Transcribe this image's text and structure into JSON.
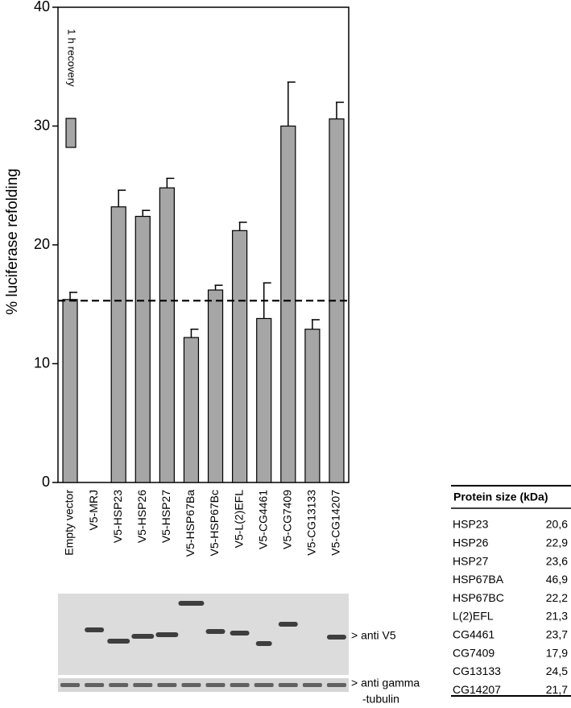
{
  "chart_data": {
    "type": "bar",
    "ylabel": "% luciferase refolding",
    "categories": [
      "Empty vector",
      "V5-MRJ",
      "V5-HSP23",
      "V5-HSP26",
      "V5-HSP27",
      "V5-HSP67Ba",
      "V5-HSP67Bc",
      "V5-L(2)EFL",
      "V5-CG4461",
      "V5-CG7409",
      "V5-CG13133",
      "V5-CG14207"
    ],
    "series": [
      {
        "name": "1 h recovery",
        "color": "#a6a6a6",
        "values": [
          15.4,
          null,
          23.2,
          22.4,
          24.8,
          12.2,
          16.2,
          21.2,
          13.8,
          30.0,
          12.9,
          30.6
        ],
        "errors": [
          0.6,
          null,
          1.4,
          0.5,
          0.8,
          0.7,
          0.4,
          0.7,
          3.0,
          3.7,
          0.8,
          1.4
        ]
      }
    ],
    "reference_line": 15.3,
    "ylim": [
      0,
      40
    ],
    "yticks": [
      0,
      10,
      20,
      30,
      40
    ]
  },
  "blot": {
    "labels": [
      "> anti V5",
      "> anti gamma",
      "-tubulin"
    ]
  },
  "table": {
    "header": "Protein size (kDa)",
    "rows": [
      [
        "HSP23",
        "20,6"
      ],
      [
        "HSP26",
        "22,9"
      ],
      [
        "HSP27",
        "23,6"
      ],
      [
        "HSP67BA",
        "46,9"
      ],
      [
        "HSP67BC",
        "22,2"
      ],
      [
        "L(2)EFL",
        "21,3"
      ],
      [
        "CG4461",
        "23,7"
      ],
      [
        "CG7409",
        "17,9"
      ],
      [
        "CG13133",
        "24,5"
      ],
      [
        "CG14207",
        "21,7"
      ]
    ]
  }
}
